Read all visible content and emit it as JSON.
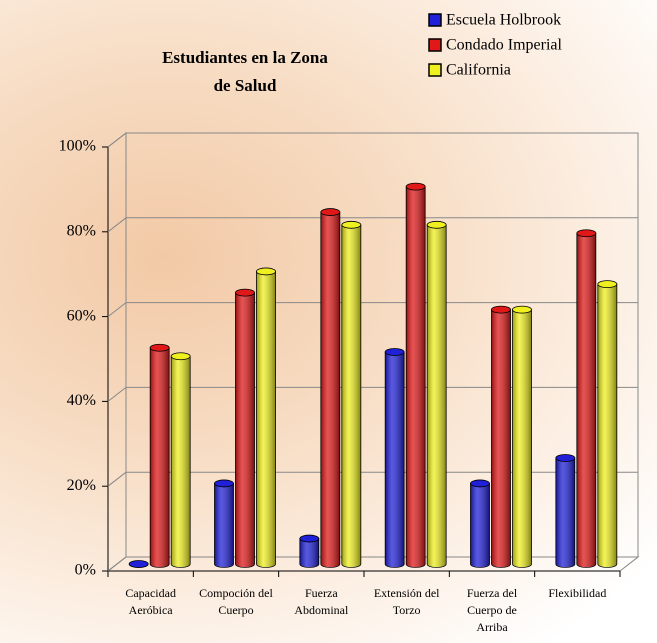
{
  "chart_data": {
    "type": "bar",
    "title": "Estudiantes en la Zona de Salud",
    "categories": [
      "Capacidad Aeróbica",
      "Compoción del Cuerpo",
      "Fuerza Abdominal",
      "Extensión del Torzo",
      "Fuerza del Cuerpo de Arriba",
      "Flexibilidad"
    ],
    "series": [
      {
        "name": "Escuela Holbrook",
        "color": "#2020d8",
        "values": [
          0,
          19,
          6,
          50,
          19,
          25
        ]
      },
      {
        "name": "Condado Imperial",
        "color": "#e01818",
        "values": [
          51,
          64,
          83,
          89,
          60,
          78
        ]
      },
      {
        "name": "California",
        "color": "#f0f020",
        "values": [
          49,
          69,
          80,
          80,
          60,
          66
        ]
      }
    ],
    "ylim": [
      0,
      100
    ],
    "yticks": [
      {
        "value": 0,
        "label": "0%"
      },
      {
        "value": 20,
        "label": "20%"
      },
      {
        "value": 40,
        "label": "40%"
      },
      {
        "value": 60,
        "label": "60%"
      },
      {
        "value": 80,
        "label": "80%"
      },
      {
        "value": 100,
        "label": "100%"
      }
    ],
    "grid": true
  }
}
